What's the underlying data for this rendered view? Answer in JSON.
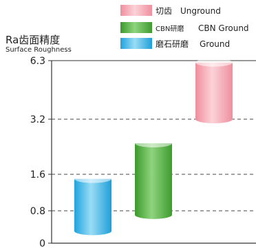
{
  "chart_data": {
    "type": "bar",
    "style": "floating cylinders (range bars)",
    "ylabel": "Ra齿面精度",
    "ylabel_sub": "Surface Roughness",
    "yticks": [
      "0",
      "0.8",
      "1.6",
      "3.2",
      "6.3"
    ],
    "ytick_values": [
      0,
      0.8,
      1.6,
      3.2,
      6.3
    ],
    "grid": "dashed horizontal lines at 0.8, 1.6, 3.2",
    "legend_position": "top",
    "series": [
      {
        "name_zh": "磨石研磨",
        "name_en": "Ground",
        "color": "#3bb6e6",
        "low": 0.3,
        "high": 1.5
      },
      {
        "name_zh": "CBN研磨",
        "name_en": "CBN Ground",
        "color": "#4fae3a",
        "low": 0.7,
        "high": 2.5
      },
      {
        "name_zh": "切齿",
        "name_en": "Unground",
        "color": "#f2a8b3",
        "low": 3.2,
        "high": 6.2
      }
    ]
  },
  "legend": [
    {
      "zh": "切齿",
      "en": "Unground",
      "color": "#f2a8b3"
    },
    {
      "zh": "CBN研磨",
      "en": "CBN Ground",
      "color": "#4fae3a"
    },
    {
      "zh": "磨石研磨",
      "en": "Ground",
      "color": "#3bb6e6"
    }
  ]
}
